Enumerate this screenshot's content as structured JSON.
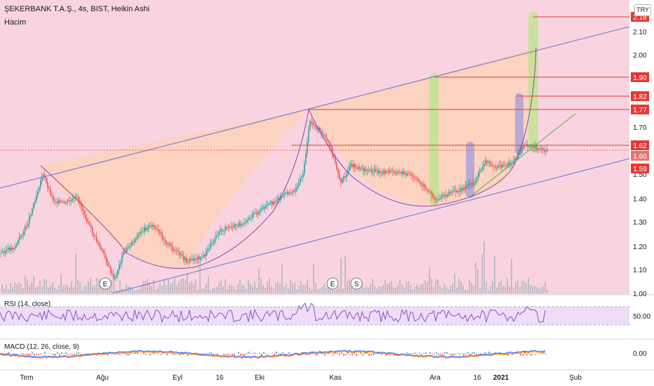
{
  "header": {
    "title": "ŞEKERBANK T.A.Ş., 4s, BIST, Heikin Ashi",
    "volume_label": "Hacim",
    "currency": "TRY"
  },
  "colors": {
    "bg_main": "#f9d4e0",
    "bg_rsi": "#f0dcf6",
    "up": "#26a69a",
    "down": "#ef5350",
    "channel": "#6670d8",
    "cup_fill": "#ffd0a8",
    "hline": "#e53935",
    "green_line": "#4caf50"
  },
  "chart_data": [
    {
      "type": "candlestick",
      "title": "ŞEKERBANK T.A.Ş., 4s, BIST, Heikin Ashi",
      "y_ticks": [
        "2.10",
        "2.00",
        "1.70",
        "1.50",
        "1.40",
        "1.30",
        "1.20",
        "1.10",
        "1.00"
      ],
      "ylim": [
        1.0,
        2.2
      ],
      "x_ticks": [
        "Tem",
        "Ağu",
        "Eyl",
        "16",
        "Eki",
        "Kas",
        "Ara",
        "16",
        "2021",
        "Şub"
      ],
      "price_levels": [
        {
          "label": "2.18",
          "value": 2.18
        },
        {
          "label": "1.90",
          "value": 1.9
        },
        {
          "label": "1.82",
          "value": 1.82
        },
        {
          "label": "1.77",
          "value": 1.77
        },
        {
          "label": "1.62",
          "value": 1.62
        },
        {
          "label": "1.60",
          "value": 1.6
        },
        {
          "label": "1.59",
          "value": 1.59
        }
      ],
      "last_price": 1.6,
      "event_markers": [
        "E",
        "E",
        "S"
      ],
      "volume_label": "Hacim"
    },
    {
      "type": "line",
      "title": "RSI (14, close)",
      "y_ticks": [
        "50.00"
      ]
    },
    {
      "type": "line",
      "title": "MACD (12, 26, close, 9)",
      "y_ticks": [
        "0.00"
      ]
    }
  ],
  "panes": {
    "rsi_label": "RSI (14, close)",
    "macd_label": "MACD (12, 26, close, 9)"
  }
}
